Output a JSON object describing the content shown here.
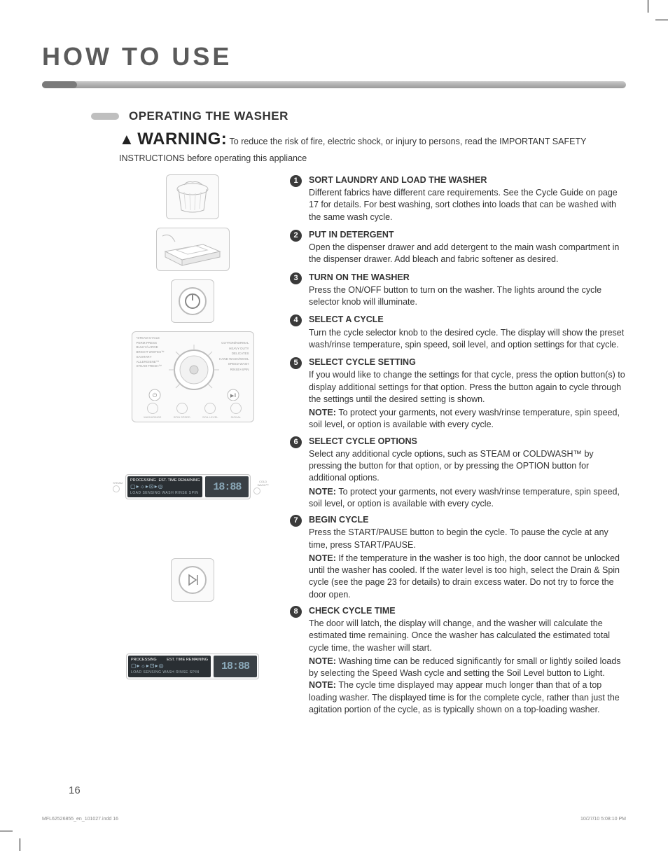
{
  "title": "HOW TO USE",
  "section_heading": "OPERATING THE WASHER",
  "warning": {
    "label": "WARNING:",
    "text": "To reduce the risk of fire, electric shock, or injury to persons, read the IMPORTANT SAFETY INSTRUCTIONS before operating this appliance"
  },
  "dial": {
    "labels_left": [
      "*STEAM CYCLE",
      "PERM.PRESS",
      "BULKY/LARGE",
      "BRIGHT WHITES™",
      "SANITARY",
      "ALLERGIENE™",
      "STEAM FRESH™"
    ],
    "labels_right": [
      "COTTON/NORMAL",
      "HEAVY DUTY",
      "DELICATES",
      "HAND WASH/WOOL",
      "SPEED WASH",
      "RINSE+SPIN"
    ],
    "buttons": [
      "WASH/RINSE",
      "SPIN SPEED",
      "SOIL LEVEL",
      "SIGNAL"
    ]
  },
  "display": {
    "header_left": "PROCESSING",
    "header_right": "EST. TIME REMAINING",
    "row2_left": "LOAD SENSING",
    "row2_right": "WASH  RINSE  SPIN",
    "side_left": "STEAM",
    "side_right": "COLD WASH™",
    "time": "18:88"
  },
  "steps": [
    {
      "n": "1",
      "title": "SORT LAUNDRY AND LOAD THE WASHER",
      "paragraphs": [
        "Different fabrics have different care requirements. See the Cycle Guide on page 17  for details. For best washing, sort clothes into loads that can be washed with the same wash cycle."
      ]
    },
    {
      "n": "2",
      "title": "PUT IN DETERGENT",
      "paragraphs": [
        "Open the dispenser drawer and add detergent to the main wash compartment in the dispenser drawer. Add bleach and fabric softener as desired."
      ]
    },
    {
      "n": "3",
      "title": "TURN ON THE WASHER",
      "paragraphs": [
        "Press the ON/OFF button to turn on the washer. The lights around the cycle selector knob will illuminate."
      ]
    },
    {
      "n": "4",
      "title": "SELECT A CYCLE",
      "paragraphs": [
        "Turn the cycle selector knob to the desired cycle. The display will show the preset wash/rinse temperature, spin speed, soil level, and option settings for that cycle."
      ]
    },
    {
      "n": "5",
      "title": "SELECT CYCLE SETTING",
      "paragraphs": [
        "If you would like to change the settings for that cycle, press the option button(s) to display additional settings for that option. Press the button again to cycle through the settings until the desired setting is shown."
      ],
      "notes": [
        "To protect your garments, not every wash/rinse temperature, spin speed, soil level, or option is available with every cycle."
      ]
    },
    {
      "n": "6",
      "title": "SELECT CYCLE OPTIONS",
      "paragraphs": [
        "Select any additional cycle options, such as STEAM or COLDWASH™ by pressing the button for that option, or by pressing the OPTION button for additional options."
      ],
      "notes": [
        "To protect your garments, not every wash/rinse temperature, spin speed, soil level, or option is available with every cycle."
      ]
    },
    {
      "n": "7",
      "title": "BEGIN CYCLE",
      "paragraphs": [
        "Press the START/PAUSE button to begin the cycle. To pause the cycle at any time, press START/PAUSE."
      ],
      "notes": [
        "If the temperature in the washer is too high, the door cannot be unlocked until the washer has cooled. If the water level is too high, select the Drain & Spin cycle (see the page 23 for details) to drain excess water. Do not try to force the door open."
      ]
    },
    {
      "n": "8",
      "title": "CHECK CYCLE TIME",
      "paragraphs": [
        "The door will latch, the display will change, and the washer will calculate the estimated time remaining. Once the washer has calculated the estimated total cycle time, the washer will start."
      ],
      "notes": [
        "Washing time can be reduced significantly for small or lightly soiled loads by selecting the Speed Wash cycle and setting the Soil Level button to Light.",
        "The cycle time displayed may appear much longer than that of a top loading washer. The displayed time is for the complete cycle, rather than just the agitation portion of the cycle, as is typically shown on a top-loading washer."
      ]
    }
  ],
  "page_number": "16",
  "footer_left": "MFL62526855_en_101027.indd   16",
  "footer_right": "10/27/10   5:08:10 PM",
  "note_label": "NOTE:"
}
